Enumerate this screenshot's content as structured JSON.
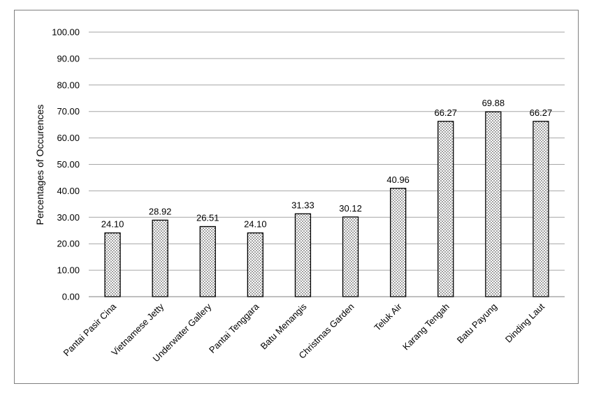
{
  "chart_data": {
    "type": "bar",
    "title": "",
    "xlabel": "",
    "ylabel": "Percentages of Occurences",
    "ylim": [
      0,
      100
    ],
    "ytick_step": 10,
    "ytick_labels": [
      "0.00",
      "10.00",
      "20.00",
      "30.00",
      "40.00",
      "50.00",
      "60.00",
      "70.00",
      "80.00",
      "90.00",
      "100.00"
    ],
    "grid": true,
    "legend": "none",
    "bar_fill": "dotted",
    "colors": {
      "grid": "#a6a6a6",
      "bar_edge": "#000000",
      "dot": "#555555"
    },
    "categories": [
      "Pantai Pasir Cina",
      "Vietnamese Jetty",
      "Underwater Gallery",
      "Pantai Tenggara",
      "Batu Menangis",
      "Christmas Garden",
      "Teluk Air",
      "Karang Tengah",
      "Batu Payung",
      "Dinding Laut"
    ],
    "values": [
      24.1,
      28.92,
      26.51,
      24.1,
      31.33,
      30.12,
      40.96,
      66.27,
      69.88,
      66.27
    ],
    "value_labels": [
      "24.10",
      "28.92",
      "26.51",
      "24.10",
      "31.33",
      "30.12",
      "40.96",
      "66.27",
      "69.88",
      "66.27"
    ]
  }
}
